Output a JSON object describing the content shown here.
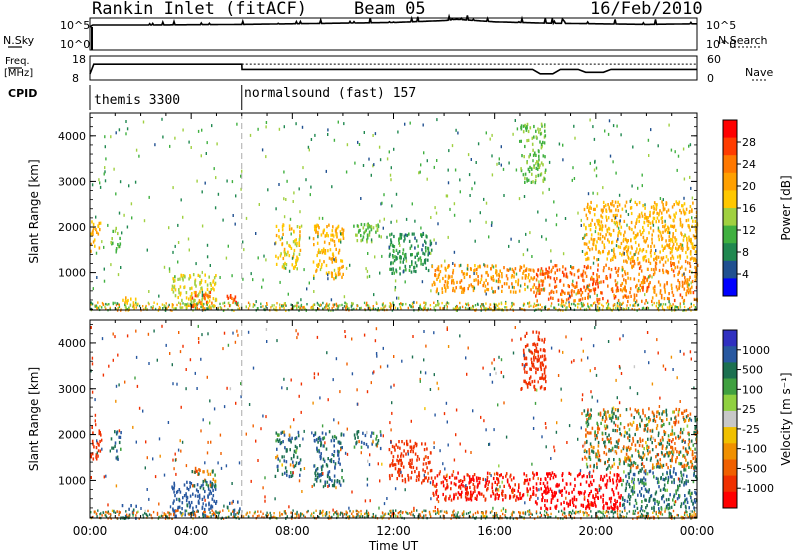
{
  "header": {
    "station": "Rankin Inlet (fitACF)",
    "beam": "Beam 05",
    "date": "16/Feb/2010"
  },
  "top_panels": {
    "nsky_label": "N.Sky",
    "nsearch_label": "N.Search",
    "freq_label": "Freq.",
    "freq_unit": "[MHz]",
    "nave_label": "Nave",
    "cpid_label": "CPID",
    "left_ticks_counts": [
      "10^5",
      "10^0"
    ],
    "right_ticks_counts": [
      "10^5",
      "10^0"
    ],
    "left_ticks_freq": [
      "18",
      "8"
    ],
    "right_ticks_nave": [
      "60",
      "0"
    ],
    "cpid_entries": [
      {
        "label": "themis 3300",
        "start_hour": 0
      },
      {
        "label": "normalsound (fast) 157",
        "start_hour": 6
      }
    ]
  },
  "colorbars": {
    "power": {
      "label": "Power [dB]",
      "ticks": [
        "28",
        "24",
        "20",
        "16",
        "12",
        "8",
        "4"
      ],
      "colors": [
        "#ff0000",
        "#ff3c00",
        "#ff7800",
        "#ffa000",
        "#ffc800",
        "#a0d040",
        "#40b040",
        "#208850",
        "#205090",
        "#0000ff"
      ]
    },
    "velocity": {
      "label": "Velocity  [m s⁻¹]",
      "ticks": [
        "1000",
        "500",
        "100",
        "25",
        "-25",
        "-100",
        "-500",
        "-1000"
      ],
      "colors": [
        "#3030c0",
        "#2858a0",
        "#1c7050",
        "#40a040",
        "#90d040",
        "#c8c8c8",
        "#f0c000",
        "#f09000",
        "#f06000",
        "#f03000",
        "#ff0000"
      ]
    }
  },
  "chart_data": [
    {
      "type": "line",
      "name": "counts",
      "xlim": [
        0,
        24
      ],
      "ylim": [
        0,
        5
      ],
      "yscale": "log10",
      "series": [
        {
          "name": "N.Sky",
          "x": [
            0,
            0.1,
            2,
            4,
            6,
            8,
            10,
            12,
            14,
            14.5,
            16,
            18,
            20,
            22,
            24
          ],
          "y": [
            3.6,
            3.9,
            3.9,
            3.95,
            4.0,
            4.1,
            4.2,
            4.3,
            4.6,
            4.8,
            4.4,
            4.2,
            4.1,
            4.0,
            4.1
          ]
        }
      ]
    },
    {
      "type": "line",
      "name": "frequency",
      "xlim": [
        0,
        24
      ],
      "ylim": [
        8,
        18
      ],
      "series": [
        {
          "name": "Freq. [MHz]",
          "x": [
            0,
            0.15,
            6,
            6.01,
            17.5,
            17.8,
            18.3,
            18.6,
            19.3,
            19.6,
            20.3,
            20.6,
            24
          ],
          "y": [
            10.5,
            14.6,
            14.6,
            12.4,
            12.4,
            10.6,
            10.6,
            12.4,
            12.4,
            11.2,
            11.2,
            12.4,
            12.4
          ]
        }
      ]
    },
    {
      "type": "heatmap",
      "name": "power",
      "title": "Power [dB]",
      "xlabel": "",
      "ylabel": "Slant Range [km]",
      "xlim": [
        0,
        24
      ],
      "ylim": [
        180,
        4500
      ],
      "yticks": [
        1000,
        2000,
        3000,
        4000
      ],
      "xticks": [
        "00:00",
        "04:00",
        "08:00",
        "12:00",
        "16:00",
        "20:00",
        "00:00"
      ],
      "clim": [
        0,
        32
      ],
      "regions": [
        {
          "t": [
            0,
            0.4
          ],
          "r": [
            1500,
            2200
          ],
          "v": 20
        },
        {
          "t": [
            0.8,
            1.2
          ],
          "r": [
            1500,
            2100
          ],
          "v": 12
        },
        {
          "t": [
            1.2,
            1.8
          ],
          "r": [
            200,
            500
          ],
          "v": 18
        },
        {
          "t": [
            3.2,
            5.0
          ],
          "r": [
            250,
            1000
          ],
          "v": 16
        },
        {
          "t": [
            4.0,
            4.8
          ],
          "r": [
            250,
            600
          ],
          "v": 26
        },
        {
          "t": [
            5.4,
            5.8
          ],
          "r": [
            250,
            600
          ],
          "v": 28
        },
        {
          "t": [
            7.3,
            8.3
          ],
          "r": [
            1100,
            2100
          ],
          "v": 18
        },
        {
          "t": [
            8.8,
            10.0
          ],
          "r": [
            900,
            2100
          ],
          "v": 20
        },
        {
          "t": [
            10.4,
            11.5
          ],
          "r": [
            1700,
            2100
          ],
          "v": 12
        },
        {
          "t": [
            11.8,
            13.5
          ],
          "r": [
            1000,
            1900
          ],
          "v": 8
        },
        {
          "t": [
            13.5,
            17.5
          ],
          "r": [
            600,
            1200
          ],
          "v": 22
        },
        {
          "t": [
            17.5,
            21.0
          ],
          "r": [
            400,
            1200
          ],
          "v": 26
        },
        {
          "t": [
            21.0,
            24.0
          ],
          "r": [
            400,
            1300
          ],
          "v": 24
        },
        {
          "t": [
            17.0,
            18.0
          ],
          "r": [
            3000,
            4300
          ],
          "v": 12
        },
        {
          "t": [
            19.5,
            24.0
          ],
          "r": [
            1300,
            2600
          ],
          "v": 20
        }
      ]
    },
    {
      "type": "heatmap",
      "name": "velocity",
      "title": "Velocity [m s-1]",
      "xlabel": "Time UT",
      "ylabel": "Slant Range [km]",
      "xlim": [
        0,
        24
      ],
      "ylim": [
        180,
        4500
      ],
      "yticks": [
        1000,
        2000,
        3000,
        4000
      ],
      "xticks": [
        "00:00",
        "04:00",
        "08:00",
        "12:00",
        "16:00",
        "20:00",
        "00:00"
      ],
      "clim": [
        -1000,
        1000
      ],
      "regions": [
        {
          "t": [
            0,
            0.4
          ],
          "r": [
            1500,
            2200
          ],
          "v": -200
        },
        {
          "t": [
            0.8,
            1.2
          ],
          "r": [
            1500,
            2100
          ],
          "v": 100
        },
        {
          "t": [
            1.2,
            1.8
          ],
          "r": [
            200,
            500
          ],
          "v": 150
        },
        {
          "t": [
            3.2,
            5.0
          ],
          "r": [
            250,
            1000
          ],
          "v": 200
        },
        {
          "t": [
            4.0,
            5.0
          ],
          "r": [
            900,
            1300
          ],
          "v": 0
        },
        {
          "t": [
            5.4,
            5.9
          ],
          "r": [
            250,
            600
          ],
          "v": 150
        },
        {
          "t": [
            7.3,
            8.3
          ],
          "r": [
            1100,
            2100
          ],
          "v": 80
        },
        {
          "t": [
            8.8,
            10.0
          ],
          "r": [
            900,
            2100
          ],
          "v": 120
        },
        {
          "t": [
            10.4,
            11.5
          ],
          "r": [
            1700,
            2100
          ],
          "v": 60
        },
        {
          "t": [
            11.8,
            13.5
          ],
          "r": [
            1000,
            1900
          ],
          "v": -300
        },
        {
          "t": [
            13.5,
            17.5
          ],
          "r": [
            600,
            1200
          ],
          "v": -500
        },
        {
          "t": [
            17.5,
            21.0
          ],
          "r": [
            400,
            1200
          ],
          "v": -600
        },
        {
          "t": [
            21.0,
            24.0
          ],
          "r": [
            400,
            1300
          ],
          "v": 100
        },
        {
          "t": [
            17.0,
            18.0
          ],
          "r": [
            3000,
            4300
          ],
          "v": -300
        },
        {
          "t": [
            19.5,
            24.0
          ],
          "r": [
            1300,
            2600
          ],
          "v": -10
        }
      ]
    }
  ]
}
